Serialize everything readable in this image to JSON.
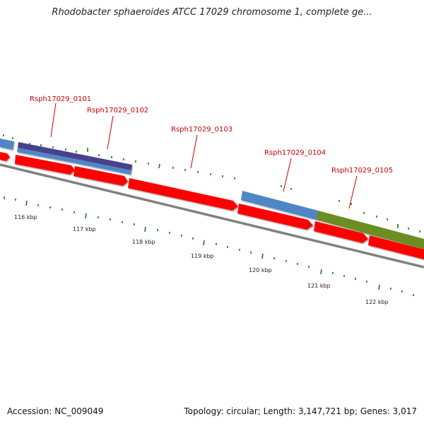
{
  "title": "Rhodobacter sphaeroides ATCC 17029 chromosome 1, complete ge...",
  "accession": "Accession: NC_009049",
  "summary": "Topology: circular; Length: 3,147,721 bp; Genes: 3,017",
  "colors": {
    "cds": "#ff0000",
    "blue_feature": "#4f86c6",
    "purple_feature": "#4a3f8c",
    "green_feature": "#6b8e23",
    "backbone": "#808080",
    "tick": "#1a7a1a",
    "label": "#cc0000"
  },
  "gene_labels": [
    {
      "text": "Rsph17029_0101"
    },
    {
      "text": "Rsph17029_0102"
    },
    {
      "text": "Rsph17029_0103"
    },
    {
      "text": "Rsph17029_0104"
    },
    {
      "text": "Rsph17029_0105"
    }
  ],
  "kbp_labels": [
    "116 kbp",
    "117 kbp",
    "118 kbp",
    "119 kbp",
    "120 kbp",
    "121 kbp",
    "122 kbp"
  ]
}
